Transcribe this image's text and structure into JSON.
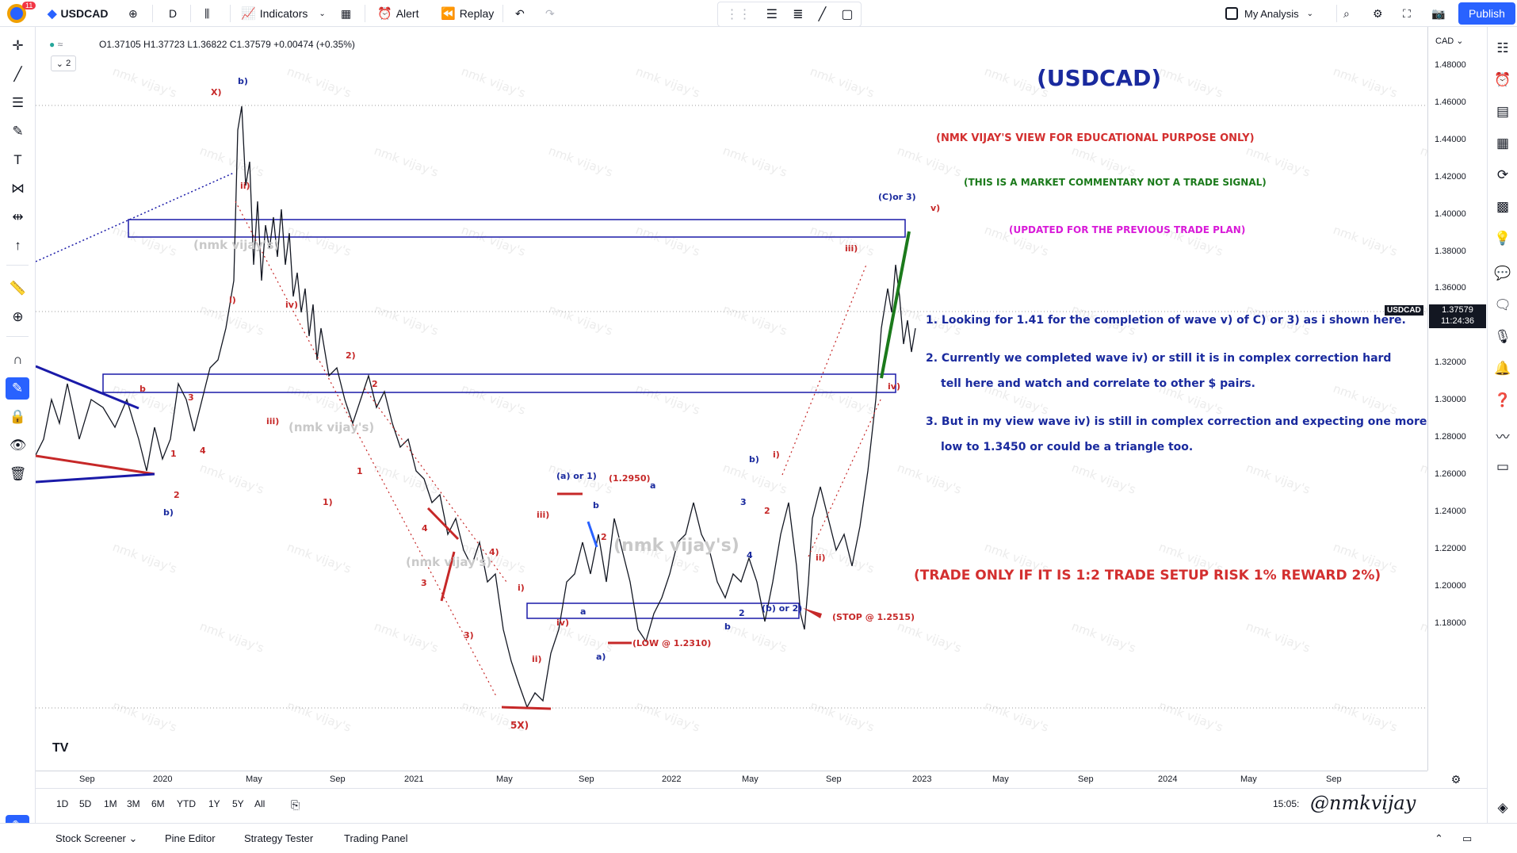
{
  "topbar": {
    "symbol": "USDCAD",
    "timeframe": "D",
    "indicators": "Indicators",
    "alert": "Alert",
    "replay": "Replay",
    "layout_name": "My Analysis",
    "publish": "Publish",
    "notif_count": "11"
  },
  "legend": {
    "ohlc": "O1.37105 H1.37723 L1.36822 C1.37579 +0.00474 (+0.35%)",
    "count": "2"
  },
  "price_axis": {
    "currency": "CAD",
    "labels": [
      "1.48000",
      "1.46000",
      "1.44000",
      "1.42000",
      "1.40000",
      "1.38000",
      "1.36000",
      "1.34000",
      "1.32000",
      "1.30000",
      "1.28000",
      "1.26000",
      "1.24000",
      "1.22000",
      "1.20000",
      "1.18000"
    ],
    "symbol_tag": "USDCAD",
    "last_price": "1.37579",
    "countdown": "11:24:36"
  },
  "time_axis": {
    "labels": [
      "Sep",
      "2020",
      "May",
      "Sep",
      "2021",
      "May",
      "Sep",
      "2022",
      "May",
      "Sep",
      "2023",
      "May",
      "Sep",
      "2024",
      "May",
      "Sep"
    ]
  },
  "ranges": [
    "1D",
    "5D",
    "1M",
    "3M",
    "6M",
    "YTD",
    "1Y",
    "5Y",
    "All"
  ],
  "clock": "15:05:",
  "bottom_tabs": [
    "Stock Screener",
    "Pine Editor",
    "Strategy Tester",
    "Trading Panel"
  ],
  "notes": {
    "title": "(USDCAD)",
    "view": "(NMK VIJAY'S VIEW FOR EDUCATIONAL PURPOSE ONLY)",
    "commentary": "(THIS IS A MARKET COMMENTARY NOT A TRADE SIGNAL)",
    "updated": "(UPDATED FOR THE PREVIOUS TRADE PLAN)",
    "point1": "1. Looking for 1.41 for the completion of wave v) of C) or 3) as i shown here.",
    "point2a": "2. Currently we completed wave iv) or still it is in complex correction hard",
    "point2b": "tell here and watch and correlate to other $ pairs.",
    "point3a": "3. But in my view wave iv) is still in complex correction and expecting one more",
    "point3b": "low to 1.3450 or could be a triangle too.",
    "trade_rule": "(TRADE ONLY IF IT IS 1:2 TRADE SETUP RISK 1% REWARD 2%)",
    "stop": "(STOP @ 1.2515)",
    "low": "(LOW @ 1.2310)",
    "level_1295": "(1.2950)",
    "wave_a_or_1": "(a) or 1)",
    "wave_b_or_2": "(b) or 2)",
    "wave_c_or_3": "(C)or 3)",
    "watermark_name": "(nmk vijay's)",
    "signature": "@nmkvijay"
  },
  "colors": {
    "accent": "#2962ff",
    "annot_red": "#d32f2f",
    "annot_blue": "#1a2a9e",
    "annot_green": "#1b7a1b",
    "annot_magenta": "#d81bd8",
    "box": "#1a1aa8",
    "candle": "#131722"
  }
}
